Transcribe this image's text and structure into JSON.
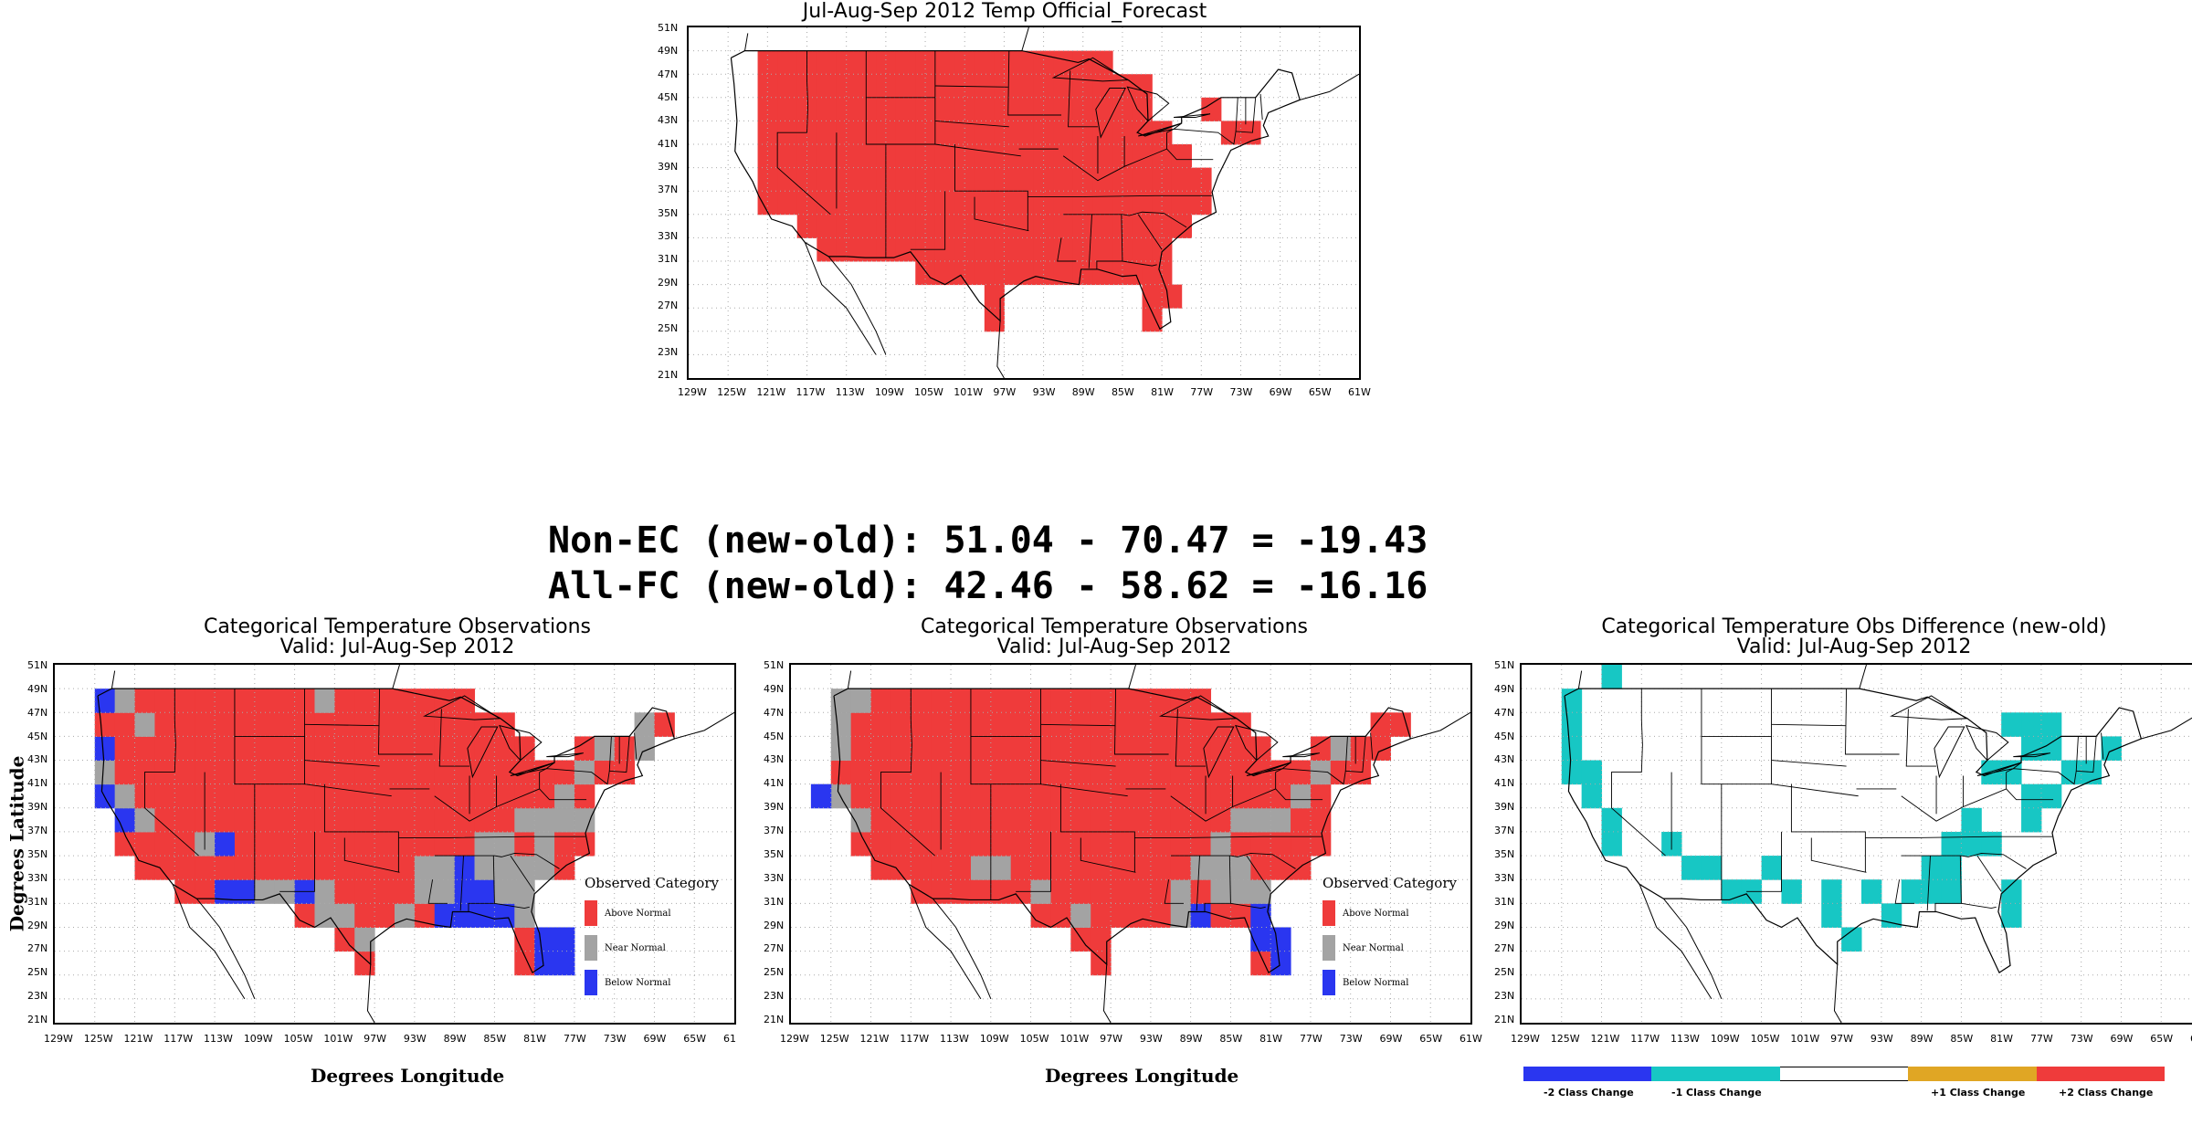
{
  "forecast": {
    "title": "Jul-Aug-Sep 2012 Temp Official_Forecast"
  },
  "stats": {
    "line1": "Non-EC (new-old): 51.04 - 70.47 = -19.43",
    "line2": "All-FC (new-old): 42.46 - 58.62 = -16.16"
  },
  "obs_left": {
    "title1": "Categorical Temperature Observations",
    "title2": "Valid: Jul-Aug-Sep 2012",
    "ylabel": "Degrees Latitude",
    "xlabel": "Degrees Longitude",
    "legend": {
      "title": "Observed Category",
      "items": [
        "Above Normal",
        "Near Normal",
        "Below Normal"
      ]
    }
  },
  "obs_mid": {
    "title1": "Categorical Temperature Observations",
    "title2": "Valid: Jul-Aug-Sep 2012",
    "xlabel": "Degrees Longitude",
    "legend": {
      "title": "Observed Category",
      "items": [
        "Above Normal",
        "Near Normal",
        "Below Normal"
      ]
    }
  },
  "diff": {
    "title1": "Categorical Temperature Obs Difference (new-old)",
    "title2": "Valid: Jul-Aug-Sep 2012",
    "legend": [
      "-2 Class Change",
      "-1 Class Change",
      "",
      "+1 Class Change",
      "+2 Class Change"
    ],
    "legend_colors": [
      "#2a36f0",
      "#17c7c4",
      "#ffffff",
      "#e0a624",
      "#ef3b3b"
    ]
  },
  "axes": {
    "lat_ticks": [
      "51N",
      "49N",
      "47N",
      "45N",
      "43N",
      "41N",
      "39N",
      "37N",
      "35N",
      "33N",
      "31N",
      "29N",
      "27N",
      "25N",
      "23N",
      "21N"
    ],
    "lon_ticks": [
      "129W",
      "125W",
      "121W",
      "117W",
      "113W",
      "109W",
      "105W",
      "101W",
      "97W",
      "93W",
      "89W",
      "85W",
      "81W",
      "77W",
      "73W",
      "69W",
      "65W",
      "61W"
    ],
    "lon_ticks_short": [
      "129W",
      "125W",
      "121W",
      "117W",
      "113W",
      "109W",
      "105W",
      "101W",
      "97W",
      "93W",
      "89W",
      "85W",
      "81W",
      "77W",
      "73W",
      "69W",
      "65W",
      "61"
    ]
  },
  "colors": {
    "above": "#ef3b3b",
    "near": "#a3a3a3",
    "below": "#2a36f0",
    "minus1": "#17c7c4"
  }
}
